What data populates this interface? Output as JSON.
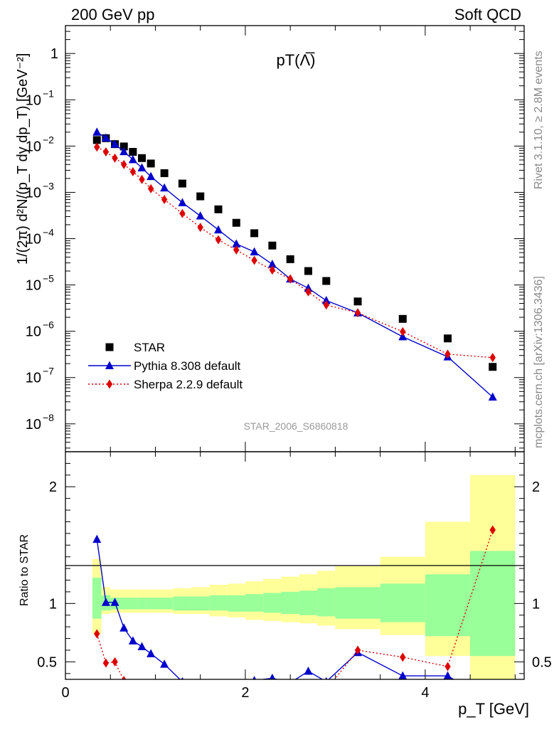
{
  "header": {
    "left": "200 GeV pp",
    "right": "Soft QCD"
  },
  "side_labels": {
    "top": "Rivet 3.1.10, ≥ 2.8M events",
    "bottom": "mcplots.cern.ch [arXiv:1306.3436]"
  },
  "chart_data": {
    "type": "scatter",
    "title": "pT(Λ̅)",
    "analysis_label": "STAR_2006_S6860818",
    "xlabel": "p_T [GeV]",
    "ylabel": "1/(2π) d²N/(p_T dy dp_T) [GeV⁻²]",
    "ratio_ylabel": "Ratio to STAR",
    "xlim": [
      0,
      5.1
    ],
    "ylim": [
      2.5e-09,
      4
    ],
    "log_y": true,
    "ratio_ylim": [
      0.35,
      2.3
    ],
    "x_ticks": [
      "0",
      "2",
      "4"
    ],
    "x_tick_values": [
      0,
      2,
      4
    ],
    "y_tick_values": [
      1e-08,
      1e-07,
      1e-06,
      1e-05,
      0.0001,
      0.001,
      0.01,
      0.1,
      1
    ],
    "y_tick_labels": [
      {
        "base": "10",
        "exp": "−8"
      },
      {
        "base": "10",
        "exp": "−7"
      },
      {
        "base": "10",
        "exp": "−6"
      },
      {
        "base": "10",
        "exp": "−5"
      },
      {
        "base": "10",
        "exp": "−4"
      },
      {
        "base": "10",
        "exp": "−3"
      },
      {
        "base": "10",
        "exp": "−2"
      },
      {
        "base": "10",
        "exp": "−1"
      },
      {
        "base": "1",
        "exp": ""
      }
    ],
    "ratio_y_ticks": [
      "0.5",
      "1",
      "2"
    ],
    "ratio_y_tick_values": [
      0.5,
      1,
      2
    ],
    "legend_position": "bottom-left",
    "band_edges": [
      0.3,
      0.4,
      0.5,
      0.6,
      0.7,
      0.8,
      0.9,
      1.0,
      1.2,
      1.4,
      1.6,
      1.8,
      2.0,
      2.2,
      2.4,
      2.6,
      2.8,
      3.0,
      3.5,
      4.0,
      4.5,
      5.0
    ],
    "band_inner_lo": [
      0.87,
      0.94,
      0.95,
      0.95,
      0.95,
      0.95,
      0.95,
      0.95,
      0.94,
      0.94,
      0.94,
      0.93,
      0.93,
      0.92,
      0.91,
      0.9,
      0.89,
      0.87,
      0.84,
      0.72,
      0.55,
      0.38
    ],
    "band_inner_hi": [
      1.22,
      1.07,
      1.05,
      1.05,
      1.05,
      1.05,
      1.05,
      1.05,
      1.06,
      1.06,
      1.07,
      1.07,
      1.08,
      1.09,
      1.1,
      1.11,
      1.13,
      1.14,
      1.17,
      1.25,
      1.45,
      1.65
    ],
    "band_outer_lo": [
      0.74,
      0.91,
      0.92,
      0.92,
      0.92,
      0.92,
      0.92,
      0.92,
      0.91,
      0.91,
      0.89,
      0.88,
      0.86,
      0.85,
      0.84,
      0.83,
      0.81,
      0.78,
      0.73,
      0.55,
      0.35,
      0.35
    ],
    "band_outer_hi": [
      1.38,
      1.14,
      1.12,
      1.12,
      1.12,
      1.12,
      1.12,
      1.12,
      1.13,
      1.14,
      1.16,
      1.17,
      1.19,
      1.21,
      1.23,
      1.25,
      1.28,
      1.32,
      1.4,
      1.7,
      2.1,
      2.1
    ],
    "series": [
      {
        "name": "STAR",
        "color": "#000000",
        "marker": "square",
        "x": [
          0.35,
          0.45,
          0.55,
          0.65,
          0.75,
          0.85,
          0.95,
          1.1,
          1.3,
          1.5,
          1.7,
          1.9,
          2.1,
          2.3,
          2.5,
          2.7,
          2.9,
          3.25,
          3.75,
          4.25,
          4.75
        ],
        "y": [
          0.0135,
          0.0148,
          0.011,
          0.0098,
          0.0075,
          0.0055,
          0.0042,
          0.0026,
          0.00155,
          0.00082,
          0.00043,
          0.00022,
          0.000131,
          7.1e-05,
          3.6e-05,
          2e-05,
          1.22e-05,
          4.4e-06,
          1.85e-06,
          7e-07,
          1.7e-07
        ]
      },
      {
        "name": "Pythia 8.308 default",
        "color": "#0000cc",
        "marker": "triangle",
        "line": "solid",
        "x": [
          0.35,
          0.45,
          0.55,
          0.65,
          0.75,
          0.85,
          0.95,
          1.1,
          1.3,
          1.5,
          1.7,
          1.9,
          2.1,
          2.3,
          2.5,
          2.7,
          2.9,
          3.25,
          3.75,
          4.25,
          4.75
        ],
        "y": [
          0.02,
          0.015,
          0.011,
          0.0076,
          0.0051,
          0.0034,
          0.0022,
          0.00125,
          0.0006,
          0.00031,
          0.000155,
          7.7e-05,
          5.2e-05,
          2.8e-05,
          1.35e-05,
          8.5e-06,
          4.6e-06,
          2.5e-06,
          7.6e-07,
          2.8e-07,
          3.8e-08
        ],
        "ratio": [
          1.55,
          1.01,
          1.01,
          0.79,
          0.68,
          0.63,
          0.57,
          0.48,
          0.33,
          0.25,
          0.22,
          0.23,
          0.34,
          0.36,
          0.32,
          0.42,
          0.33,
          0.58,
          0.38,
          0.38,
          0.15
        ]
      },
      {
        "name": "Sherpa 2.2.9 default",
        "color": "#dd0000",
        "marker": "diamond",
        "line": "dotted",
        "x": [
          0.35,
          0.45,
          0.55,
          0.65,
          0.75,
          0.85,
          0.95,
          1.1,
          1.3,
          1.5,
          1.7,
          1.9,
          2.1,
          2.3,
          2.5,
          2.7,
          2.9,
          3.25,
          3.75,
          4.25,
          4.75
        ],
        "y": [
          0.0095,
          0.0075,
          0.0055,
          0.004,
          0.0028,
          0.0019,
          0.0012,
          0.0007,
          0.00035,
          0.000175,
          9.5e-05,
          5.7e-05,
          3.4e-05,
          2.1e-05,
          1.35e-05,
          7.1e-06,
          3.7e-06,
          2.5e-06,
          9.8e-07,
          3.2e-07,
          2.7e-07
        ],
        "ratio": [
          0.74,
          0.49,
          0.5,
          0.34,
          0.28,
          0.25,
          0.22,
          0.2,
          0.16,
          0.15,
          0.14,
          0.14,
          0.15,
          0.18,
          0.2,
          0.23,
          0.26,
          0.6,
          0.54,
          0.46,
          1.63
        ]
      }
    ]
  }
}
